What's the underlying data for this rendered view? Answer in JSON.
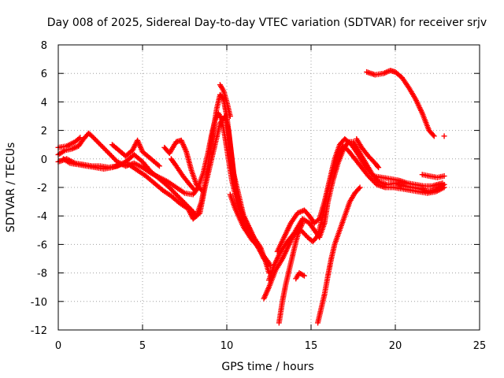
{
  "chart_data": {
    "type": "scatter",
    "title": "Day 008 of 2025, Sidereal Day-to-day VTEC variation (SDTVAR) for receiver srjv",
    "xlabel": "GPS time / hours",
    "ylabel": "SDTVAR / TECUs",
    "xlim": [
      0,
      25
    ],
    "ylim": [
      -12,
      8
    ],
    "xticks": [
      0,
      5,
      10,
      15,
      20,
      25
    ],
    "yticks": [
      -12,
      -10,
      -8,
      -6,
      -4,
      -2,
      0,
      2,
      4,
      6,
      8
    ],
    "grid": true,
    "marker": "plus",
    "color": "#ff0000",
    "series": [
      {
        "points": [
          [
            0.0,
            0.8
          ],
          [
            0.5,
            0.9
          ],
          [
            1.0,
            1.2
          ],
          [
            1.3,
            1.5
          ]
        ]
      },
      {
        "points": [
          [
            0.0,
            0.3
          ],
          [
            0.4,
            0.6
          ],
          [
            0.8,
            0.7
          ],
          [
            1.2,
            0.9
          ],
          [
            1.5,
            1.4
          ],
          [
            1.8,
            1.8
          ],
          [
            2.0,
            1.6
          ],
          [
            2.5,
            1.0
          ],
          [
            3.0,
            0.4
          ],
          [
            3.5,
            -0.2
          ],
          [
            4.0,
            -0.5
          ],
          [
            4.5,
            -0.3
          ],
          [
            5.0,
            -0.6
          ],
          [
            5.5,
            -1.0
          ],
          [
            6.0,
            -1.3
          ],
          [
            6.5,
            -1.6
          ],
          [
            7.0,
            -2.0
          ],
          [
            7.5,
            -2.4
          ],
          [
            8.0,
            -2.5
          ],
          [
            8.3,
            -2.0
          ],
          [
            8.6,
            -1.0
          ],
          [
            8.9,
            0.5
          ],
          [
            9.1,
            1.7
          ],
          [
            9.3,
            2.7
          ],
          [
            9.5,
            3.2
          ],
          [
            9.7,
            2.8
          ],
          [
            9.9,
            1.5
          ],
          [
            10.1,
            0.0
          ],
          [
            10.3,
            -1.5
          ],
          [
            10.6,
            -3.0
          ],
          [
            11.0,
            -4.5
          ],
          [
            11.5,
            -5.5
          ],
          [
            12.0,
            -6.5
          ],
          [
            12.5,
            -7.3
          ]
        ]
      },
      {
        "points": [
          [
            0.0,
            -0.2
          ],
          [
            0.5,
            0.0
          ],
          [
            1.0,
            -0.3
          ],
          [
            1.5,
            -0.4
          ],
          [
            2.0,
            -0.5
          ],
          [
            2.5,
            -0.5
          ],
          [
            3.0,
            -0.6
          ],
          [
            3.5,
            -0.5
          ],
          [
            4.0,
            -0.2
          ],
          [
            4.5,
            0.3
          ],
          [
            5.0,
            -0.2
          ],
          [
            5.5,
            -0.9
          ],
          [
            6.0,
            -1.4
          ],
          [
            6.5,
            -1.9
          ],
          [
            7.0,
            -2.5
          ],
          [
            7.5,
            -3.1
          ],
          [
            8.0,
            -3.7
          ],
          [
            8.2,
            -4.0
          ],
          [
            8.5,
            -3.0
          ],
          [
            8.8,
            -1.2
          ],
          [
            9.0,
            0.5
          ],
          [
            9.2,
            2.0
          ],
          [
            9.4,
            3.5
          ],
          [
            9.6,
            4.5
          ],
          [
            9.8,
            4.2
          ],
          [
            10.0,
            3.0
          ],
          [
            10.2,
            1.0
          ],
          [
            10.4,
            -1.0
          ],
          [
            10.7,
            -2.5
          ],
          [
            11.0,
            -4.0
          ],
          [
            11.4,
            -5.0
          ],
          [
            11.8,
            -6.0
          ],
          [
            12.2,
            -7.0
          ],
          [
            12.6,
            -7.5
          ]
        ]
      },
      {
        "points": [
          [
            0.3,
            0.0
          ],
          [
            0.7,
            -0.3
          ],
          [
            1.2,
            -0.4
          ],
          [
            1.7,
            -0.5
          ],
          [
            2.2,
            -0.6
          ],
          [
            2.7,
            -0.7
          ],
          [
            3.2,
            -0.6
          ],
          [
            3.7,
            -0.4
          ],
          [
            4.2,
            -0.4
          ],
          [
            4.7,
            -0.8
          ],
          [
            5.2,
            -1.2
          ],
          [
            5.7,
            -1.7
          ],
          [
            6.2,
            -2.2
          ],
          [
            6.7,
            -2.6
          ],
          [
            7.2,
            -3.1
          ],
          [
            7.7,
            -3.5
          ],
          [
            8.0,
            -4.2
          ],
          [
            8.4,
            -3.8
          ],
          [
            8.7,
            -2.0
          ],
          [
            9.0,
            -0.5
          ],
          [
            9.3,
            1.0
          ],
          [
            9.6,
            2.5
          ],
          [
            9.9,
            3.0
          ],
          [
            10.1,
            2.0
          ],
          [
            10.3,
            0.0
          ],
          [
            10.5,
            -2.0
          ],
          [
            10.8,
            -3.5
          ],
          [
            11.2,
            -4.5
          ],
          [
            11.6,
            -5.5
          ],
          [
            12.0,
            -6.2
          ],
          [
            12.3,
            -7.2
          ],
          [
            12.5,
            -8.0
          ]
        ]
      },
      {
        "points": [
          [
            3.2,
            1.0
          ],
          [
            3.6,
            0.6
          ],
          [
            4.0,
            0.2
          ],
          [
            4.4,
            0.6
          ],
          [
            4.7,
            1.3
          ],
          [
            5.0,
            0.5
          ],
          [
            5.5,
            0.0
          ],
          [
            6.0,
            -0.5
          ]
        ]
      },
      {
        "points": [
          [
            6.3,
            0.8
          ],
          [
            6.6,
            0.4
          ],
          [
            7.0,
            1.2
          ],
          [
            7.3,
            1.3
          ],
          [
            7.6,
            0.5
          ],
          [
            7.9,
            -0.8
          ],
          [
            8.2,
            -1.8
          ],
          [
            8.5,
            -2.2
          ]
        ]
      },
      {
        "points": [
          [
            6.7,
            0.0
          ],
          [
            7.0,
            -0.5
          ],
          [
            7.4,
            -1.2
          ],
          [
            7.8,
            -1.8
          ],
          [
            8.1,
            -2.2
          ]
        ]
      },
      {
        "points": [
          [
            9.6,
            5.2
          ],
          [
            9.8,
            4.8
          ],
          [
            10.0,
            4.0
          ],
          [
            10.2,
            3.0
          ]
        ]
      },
      {
        "points": [
          [
            10.2,
            -2.5
          ],
          [
            10.5,
            -3.5
          ],
          [
            11.0,
            -4.8
          ],
          [
            11.5,
            -5.7
          ],
          [
            12.0,
            -6.3
          ]
        ]
      },
      {
        "points": [
          [
            12.2,
            -9.8
          ],
          [
            12.5,
            -9.0
          ],
          [
            12.9,
            -7.8
          ],
          [
            13.3,
            -7.0
          ],
          [
            13.7,
            -6.0
          ],
          [
            14.1,
            -5.0
          ],
          [
            14.5,
            -4.2
          ],
          [
            14.9,
            -4.5
          ],
          [
            15.2,
            -5.0
          ],
          [
            15.5,
            -5.5
          ],
          [
            15.8,
            -4.5
          ],
          [
            16.0,
            -3.0
          ],
          [
            16.3,
            -1.5
          ],
          [
            16.6,
            -0.3
          ],
          [
            16.9,
            0.6
          ],
          [
            17.2,
            1.2
          ],
          [
            17.5,
            1.2
          ],
          [
            17.8,
            0.6
          ],
          [
            18.2,
            -0.2
          ],
          [
            18.6,
            -1.0
          ],
          [
            19.0,
            -1.6
          ],
          [
            19.5,
            -1.8
          ],
          [
            20.0,
            -1.7
          ],
          [
            20.5,
            -1.9
          ],
          [
            21.0,
            -2.0
          ],
          [
            21.5,
            -2.1
          ],
          [
            22.0,
            -2.3
          ],
          [
            22.5,
            -2.1
          ],
          [
            22.9,
            -1.8
          ]
        ]
      },
      {
        "points": [
          [
            12.5,
            -8.5
          ],
          [
            12.8,
            -7.5
          ],
          [
            13.2,
            -6.5
          ],
          [
            13.6,
            -5.8
          ],
          [
            14.0,
            -5.2
          ],
          [
            14.4,
            -5.0
          ],
          [
            14.8,
            -5.5
          ],
          [
            15.1,
            -5.8
          ],
          [
            15.4,
            -5.4
          ],
          [
            15.7,
            -4.0
          ],
          [
            16.0,
            -2.2
          ],
          [
            16.3,
            -0.8
          ],
          [
            16.6,
            0.3
          ],
          [
            16.9,
            0.9
          ],
          [
            17.2,
            0.6
          ],
          [
            17.6,
            0.0
          ],
          [
            18.0,
            -0.6
          ],
          [
            18.4,
            -1.2
          ],
          [
            18.9,
            -1.8
          ],
          [
            19.4,
            -2.0
          ],
          [
            19.9,
            -2.0
          ],
          [
            20.4,
            -2.1
          ],
          [
            20.9,
            -2.2
          ],
          [
            21.4,
            -2.3
          ],
          [
            21.9,
            -2.4
          ],
          [
            22.4,
            -2.3
          ],
          [
            22.9,
            -2.0
          ]
        ]
      },
      {
        "points": [
          [
            13.0,
            -6.5
          ],
          [
            13.4,
            -5.5
          ],
          [
            13.8,
            -4.5
          ],
          [
            14.2,
            -3.8
          ],
          [
            14.6,
            -3.6
          ],
          [
            14.9,
            -4.0
          ],
          [
            15.2,
            -4.5
          ],
          [
            15.5,
            -4.2
          ],
          [
            15.8,
            -3.0
          ],
          [
            16.1,
            -1.5
          ],
          [
            16.4,
            0.0
          ],
          [
            16.7,
            1.0
          ],
          [
            17.0,
            1.4
          ],
          [
            17.4,
            1.0
          ],
          [
            17.8,
            0.3
          ],
          [
            18.2,
            -0.5
          ],
          [
            18.7,
            -1.2
          ],
          [
            19.2,
            -1.3
          ],
          [
            19.7,
            -1.4
          ],
          [
            20.2,
            -1.5
          ],
          [
            20.7,
            -1.7
          ],
          [
            21.2,
            -1.8
          ],
          [
            21.7,
            -1.9
          ],
          [
            22.2,
            -1.9
          ],
          [
            22.8,
            -1.7
          ]
        ]
      },
      {
        "points": [
          [
            13.1,
            -11.5
          ],
          [
            13.3,
            -10.0
          ],
          [
            13.5,
            -8.8
          ],
          [
            13.7,
            -7.8
          ],
          [
            13.9,
            -6.8
          ],
          [
            14.1,
            -5.8
          ],
          [
            14.3,
            -5.0
          ],
          [
            14.5,
            -4.5
          ]
        ]
      },
      {
        "points": [
          [
            14.1,
            -8.4
          ],
          [
            14.3,
            -8.0
          ],
          [
            14.6,
            -8.2
          ]
        ]
      },
      {
        "points": [
          [
            15.4,
            -11.5
          ],
          [
            15.6,
            -10.5
          ],
          [
            15.8,
            -9.5
          ],
          [
            16.0,
            -8.2
          ],
          [
            16.2,
            -7.0
          ],
          [
            16.4,
            -6.0
          ],
          [
            16.7,
            -5.0
          ],
          [
            17.0,
            -4.0
          ],
          [
            17.3,
            -3.0
          ],
          [
            17.6,
            -2.4
          ],
          [
            17.9,
            -2.0
          ]
        ]
      },
      {
        "points": [
          [
            17.7,
            1.4
          ],
          [
            18.0,
            0.8
          ],
          [
            18.4,
            0.2
          ],
          [
            18.8,
            -0.3
          ],
          [
            19.0,
            -0.6
          ]
        ]
      },
      {
        "points": [
          [
            18.3,
            6.1
          ],
          [
            18.8,
            5.9
          ],
          [
            19.3,
            6.0
          ],
          [
            19.7,
            6.2
          ],
          [
            20.0,
            6.1
          ],
          [
            20.4,
            5.7
          ],
          [
            20.8,
            5.0
          ],
          [
            21.2,
            4.2
          ],
          [
            21.6,
            3.2
          ],
          [
            22.0,
            2.0
          ],
          [
            22.3,
            1.6
          ]
        ]
      },
      {
        "points": [
          [
            21.6,
            -1.1
          ],
          [
            22.0,
            -1.2
          ],
          [
            22.5,
            -1.3
          ],
          [
            22.9,
            -1.2
          ]
        ]
      },
      {
        "points": [
          [
            22.9,
            1.6
          ]
        ]
      }
    ]
  }
}
